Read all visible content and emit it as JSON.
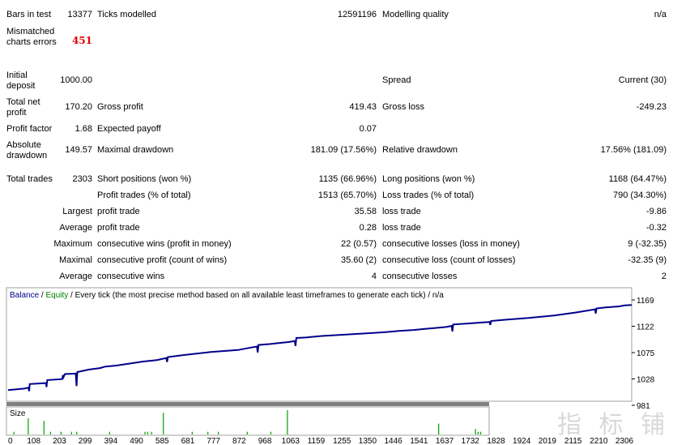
{
  "stats": {
    "bars_in_test": {
      "label": "Bars in test",
      "value": "13377"
    },
    "ticks_modelled": {
      "label": "Ticks modelled",
      "value": "12591196"
    },
    "modelling_quality": {
      "label": "Modelling quality",
      "value": "n/a"
    },
    "mismatched": {
      "label": "Mismatched charts errors",
      "value": "451"
    },
    "initial_deposit": {
      "label": "Initial deposit",
      "value": "1000.00"
    },
    "spread": {
      "label": "Spread",
      "value": "Current (30)"
    },
    "total_net_profit": {
      "label": "Total net profit",
      "value": "170.20"
    },
    "gross_profit": {
      "label": "Gross profit",
      "value": "419.43"
    },
    "gross_loss": {
      "label": "Gross loss",
      "value": "-249.23"
    },
    "profit_factor": {
      "label": "Profit factor",
      "value": "1.68"
    },
    "expected_payoff": {
      "label": "Expected payoff",
      "value": "0.07"
    },
    "absolute_drawdown": {
      "label": "Absolute drawdown",
      "value": "149.57"
    },
    "maximal_drawdown": {
      "label": "Maximal drawdown",
      "value": "181.09 (17.56%)"
    },
    "relative_drawdown": {
      "label": "Relative drawdown",
      "value": "17.56% (181.09)"
    },
    "total_trades": {
      "label": "Total trades",
      "value": "2303"
    },
    "short_positions": {
      "label": "Short positions (won %)",
      "value": "1135 (66.96%)"
    },
    "long_positions": {
      "label": "Long positions (won %)",
      "value": "1168 (64.47%)"
    },
    "profit_trades": {
      "label": "Profit trades (% of total)",
      "value": "1513 (65.70%)"
    },
    "loss_trades": {
      "label": "Loss trades (% of total)",
      "value": "790 (34.30%)"
    },
    "largest_label": "Largest",
    "largest_profit": {
      "label": "profit trade",
      "value": "35.58"
    },
    "largest_loss": {
      "label": "loss trade",
      "value": "-9.86"
    },
    "average_label": "Average",
    "average_profit": {
      "label": "profit trade",
      "value": "0.28"
    },
    "average_loss": {
      "label": "loss trade",
      "value": "-0.32"
    },
    "maximum_label": "Maximum",
    "max_consec_wins": {
      "label": "consecutive wins (profit in money)",
      "value": "22 (0.57)"
    },
    "max_consec_losses": {
      "label": "consecutive losses (loss in money)",
      "value": "9 (-32.35)"
    },
    "maximal_label": "Maximal",
    "maximal_consec_profit": {
      "label": "consecutive profit (count of wins)",
      "value": "35.60 (2)"
    },
    "maximal_consec_loss": {
      "label": "consecutive loss (count of losses)",
      "value": "-32.35 (9)"
    },
    "average2_label": "Average",
    "avg_consec_wins": {
      "label": "consecutive wins",
      "value": "4"
    },
    "avg_consec_losses": {
      "label": "consecutive losses",
      "value": "2"
    }
  },
  "chart_data": {
    "type": "line",
    "legend": {
      "balance": "Balance",
      "sep1": " / ",
      "equity": "Equity",
      "rest": " / Every tick (the most precise method based on all available least timeframes to generate each tick) / n/a"
    },
    "colors": {
      "balance": "#00008b",
      "equity": "#008000",
      "size": "#00a000",
      "grid": "#c8c8c8",
      "bar": "#808080"
    },
    "y_ticks": [
      1169,
      1122,
      1075,
      1028,
      981
    ],
    "ylim": [
      981,
      1180
    ],
    "x_ticks": [
      0,
      108,
      203,
      299,
      394,
      490,
      585,
      681,
      777,
      872,
      968,
      1063,
      1159,
      1255,
      1350,
      1446,
      1541,
      1637,
      1732,
      1828,
      1924,
      2019,
      2115,
      2210,
      2306
    ],
    "xlim": [
      0,
      2306
    ],
    "size_label": "Size",
    "balance_points": [
      [
        0,
        1000
      ],
      [
        60,
        1003
      ],
      [
        75,
        1005
      ],
      [
        78,
        998
      ],
      [
        80,
        1012
      ],
      [
        140,
        1014
      ],
      [
        142,
        1006
      ],
      [
        145,
        1020
      ],
      [
        200,
        1022
      ],
      [
        203,
        1030
      ],
      [
        205,
        1026
      ],
      [
        210,
        1032
      ],
      [
        250,
        1033
      ],
      [
        253,
        1008
      ],
      [
        256,
        1036
      ],
      [
        300,
        1041
      ],
      [
        340,
        1044
      ],
      [
        360,
        1047
      ],
      [
        400,
        1049
      ],
      [
        450,
        1053
      ],
      [
        500,
        1057
      ],
      [
        550,
        1060
      ],
      [
        585,
        1064
      ],
      [
        588,
        1056
      ],
      [
        591,
        1066
      ],
      [
        650,
        1070
      ],
      [
        700,
        1073
      ],
      [
        750,
        1076
      ],
      [
        800,
        1078
      ],
      [
        850,
        1080
      ],
      [
        900,
        1085
      ],
      [
        920,
        1087
      ],
      [
        923,
        1075
      ],
      [
        926,
        1090
      ],
      [
        970,
        1092
      ],
      [
        1000,
        1094
      ],
      [
        1040,
        1096
      ],
      [
        1060,
        1098
      ],
      [
        1063,
        1088
      ],
      [
        1066,
        1104
      ],
      [
        1100,
        1105
      ],
      [
        1160,
        1108
      ],
      [
        1255,
        1111
      ],
      [
        1350,
        1114
      ],
      [
        1400,
        1116
      ],
      [
        1446,
        1118
      ],
      [
        1500,
        1120
      ],
      [
        1541,
        1122
      ],
      [
        1580,
        1124
      ],
      [
        1620,
        1126
      ],
      [
        1640,
        1128
      ],
      [
        1643,
        1117
      ],
      [
        1646,
        1131
      ],
      [
        1700,
        1133
      ],
      [
        1780,
        1136
      ],
      [
        1783,
        1130
      ],
      [
        1786,
        1138
      ],
      [
        1828,
        1140
      ],
      [
        1924,
        1144
      ],
      [
        2019,
        1149
      ],
      [
        2100,
        1155
      ],
      [
        2170,
        1161
      ],
      [
        2173,
        1153
      ],
      [
        2176,
        1163
      ],
      [
        2210,
        1165
      ],
      [
        2260,
        1167
      ],
      [
        2280,
        1169
      ],
      [
        2306,
        1170
      ]
    ],
    "size_spikes": [
      [
        20,
        1
      ],
      [
        75,
        6
      ],
      [
        135,
        5
      ],
      [
        160,
        1
      ],
      [
        200,
        1
      ],
      [
        240,
        1
      ],
      [
        260,
        1
      ],
      [
        385,
        1
      ],
      [
        520,
        1
      ],
      [
        530,
        1
      ],
      [
        545,
        1
      ],
      [
        590,
        8
      ],
      [
        700,
        1
      ],
      [
        760,
        1
      ],
      [
        800,
        1
      ],
      [
        910,
        1
      ],
      [
        1000,
        1
      ],
      [
        1063,
        9
      ],
      [
        1640,
        4
      ],
      [
        1780,
        2
      ],
      [
        1790,
        1
      ],
      [
        1800,
        1
      ]
    ],
    "size_max": 9
  },
  "watermark": "指 标 铺"
}
